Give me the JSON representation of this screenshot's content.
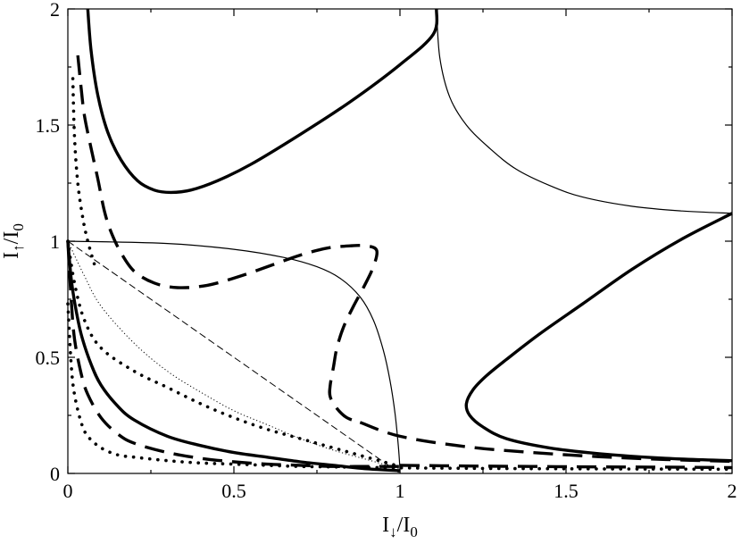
{
  "chart_data": {
    "type": "line",
    "title": "",
    "xlabel": {
      "main": "I",
      "sub1": "↓",
      "sep": "/I",
      "sub2": "0"
    },
    "ylabel": {
      "main": "I",
      "sub1": "↑",
      "sep": "/I",
      "sub2": "0"
    },
    "xlim": [
      0,
      2
    ],
    "ylim": [
      0,
      2
    ],
    "grid": false,
    "legend": "none",
    "x_ticks": [
      {
        "value": 0,
        "label": "0"
      },
      {
        "value": 0.5,
        "label": "0.5"
      },
      {
        "value": 1,
        "label": "1"
      },
      {
        "value": 1.5,
        "label": "1.5"
      },
      {
        "value": 2,
        "label": "2"
      }
    ],
    "y_ticks": [
      {
        "value": 0,
        "label": "0"
      },
      {
        "value": 0.5,
        "label": "0.5"
      },
      {
        "value": 1,
        "label": "1"
      },
      {
        "value": 1.5,
        "label": "1.5"
      },
      {
        "value": 2,
        "label": "2"
      }
    ],
    "series": [
      {
        "style": "thick-solid",
        "points": [
          [
            0.06,
            2.0
          ],
          [
            0.07,
            1.82
          ],
          [
            0.09,
            1.63
          ],
          [
            0.12,
            1.47
          ],
          [
            0.16,
            1.35
          ],
          [
            0.21,
            1.26
          ],
          [
            0.26,
            1.22
          ],
          [
            0.31,
            1.21
          ],
          [
            0.37,
            1.22
          ],
          [
            0.45,
            1.26
          ],
          [
            0.55,
            1.33
          ],
          [
            0.7,
            1.46
          ],
          [
            0.85,
            1.6
          ],
          [
            1.0,
            1.76
          ],
          [
            1.1,
            1.89
          ],
          [
            1.11,
            2.0
          ]
        ]
      },
      {
        "style": "thick-solid",
        "points": [
          [
            0.0,
            1.0
          ],
          [
            0.01,
            0.84
          ],
          [
            0.02,
            0.74
          ],
          [
            0.04,
            0.6
          ],
          [
            0.07,
            0.47
          ],
          [
            0.1,
            0.38
          ],
          [
            0.15,
            0.29
          ],
          [
            0.2,
            0.23
          ],
          [
            0.3,
            0.16
          ],
          [
            0.4,
            0.12
          ],
          [
            0.5,
            0.09
          ],
          [
            0.6,
            0.07
          ],
          [
            0.7,
            0.05
          ],
          [
            0.8,
            0.035
          ],
          [
            0.9,
            0.02
          ],
          [
            1.0,
            0.012
          ]
        ]
      },
      {
        "style": "thick-solid",
        "points": [
          [
            2.0,
            1.12
          ],
          [
            1.85,
            1.01
          ],
          [
            1.7,
            0.88
          ],
          [
            1.55,
            0.73
          ],
          [
            1.42,
            0.6
          ],
          [
            1.32,
            0.49
          ],
          [
            1.26,
            0.42
          ],
          [
            1.22,
            0.36
          ],
          [
            1.2,
            0.3
          ],
          [
            1.21,
            0.25
          ],
          [
            1.25,
            0.2
          ],
          [
            1.32,
            0.15
          ],
          [
            1.45,
            0.11
          ],
          [
            1.6,
            0.085
          ],
          [
            1.8,
            0.065
          ],
          [
            2.0,
            0.055
          ]
        ]
      },
      {
        "style": "thin-solid",
        "points": [
          [
            1.11,
            2.0
          ],
          [
            1.12,
            1.79
          ],
          [
            1.15,
            1.62
          ],
          [
            1.2,
            1.5
          ],
          [
            1.27,
            1.4
          ],
          [
            1.35,
            1.31
          ],
          [
            1.45,
            1.24
          ],
          [
            1.55,
            1.19
          ],
          [
            1.7,
            1.15
          ],
          [
            1.85,
            1.13
          ],
          [
            2.0,
            1.12
          ]
        ]
      },
      {
        "style": "thin-solid",
        "points": [
          [
            0.0,
            1.0
          ],
          [
            0.3,
            0.99
          ],
          [
            0.5,
            0.965
          ],
          [
            0.65,
            0.93
          ],
          [
            0.75,
            0.89
          ],
          [
            0.82,
            0.84
          ],
          [
            0.88,
            0.76
          ],
          [
            0.92,
            0.66
          ],
          [
            0.95,
            0.53
          ],
          [
            0.97,
            0.4
          ],
          [
            0.985,
            0.26
          ],
          [
            0.995,
            0.12
          ],
          [
            1.0,
            0.02
          ]
        ]
      },
      {
        "style": "dashed",
        "points": [
          [
            0.03,
            1.8
          ],
          [
            0.04,
            1.66
          ],
          [
            0.05,
            1.54
          ],
          [
            0.07,
            1.4
          ],
          [
            0.09,
            1.27
          ],
          [
            0.11,
            1.13
          ],
          [
            0.13,
            1.04
          ],
          [
            0.16,
            0.95
          ],
          [
            0.2,
            0.87
          ],
          [
            0.26,
            0.82
          ],
          [
            0.33,
            0.8
          ],
          [
            0.42,
            0.81
          ],
          [
            0.52,
            0.85
          ],
          [
            0.62,
            0.9
          ],
          [
            0.7,
            0.94
          ],
          [
            0.78,
            0.97
          ],
          [
            0.85,
            0.98
          ],
          [
            0.9,
            0.98
          ],
          [
            0.93,
            0.96
          ],
          [
            0.92,
            0.89
          ],
          [
            0.89,
            0.8
          ],
          [
            0.86,
            0.72
          ],
          [
            0.83,
            0.63
          ],
          [
            0.81,
            0.54
          ],
          [
            0.8,
            0.46
          ],
          [
            0.79,
            0.38
          ],
          [
            0.79,
            0.33
          ],
          [
            0.81,
            0.28
          ],
          [
            0.84,
            0.24
          ],
          [
            0.88,
            0.22
          ]
        ]
      },
      {
        "style": "dashed",
        "points": [
          [
            0.0,
            1.0
          ],
          [
            0.01,
            0.75
          ],
          [
            0.02,
            0.58
          ],
          [
            0.04,
            0.43
          ],
          [
            0.06,
            0.34
          ],
          [
            0.1,
            0.24
          ],
          [
            0.15,
            0.17
          ],
          [
            0.2,
            0.13
          ],
          [
            0.3,
            0.09
          ],
          [
            0.4,
            0.065
          ],
          [
            0.5,
            0.05
          ],
          [
            0.6,
            0.04
          ],
          [
            0.7,
            0.035
          ],
          [
            0.8,
            0.03
          ],
          [
            0.9,
            0.03
          ],
          [
            1.0,
            0.03
          ]
        ]
      },
      {
        "style": "dashed",
        "points": [
          [
            0.88,
            0.22
          ],
          [
            1.0,
            0.16
          ],
          [
            1.2,
            0.115
          ],
          [
            1.4,
            0.09
          ],
          [
            1.6,
            0.072
          ],
          [
            1.8,
            0.06
          ],
          [
            2.0,
            0.052
          ]
        ]
      },
      {
        "style": "dashed",
        "points": [
          [
            1.0,
            0.035
          ],
          [
            1.2,
            0.032
          ],
          [
            1.4,
            0.03
          ],
          [
            1.6,
            0.028
          ],
          [
            1.8,
            0.027
          ],
          [
            2.0,
            0.025
          ]
        ]
      },
      {
        "style": "thin-dashed",
        "points": [
          [
            0.0,
            1.0
          ],
          [
            0.5,
            0.5
          ],
          [
            1.0,
            0.0
          ]
        ]
      },
      {
        "style": "dotted",
        "points": [
          [
            0.015,
            1.7
          ],
          [
            0.02,
            1.45
          ],
          [
            0.03,
            1.25
          ],
          [
            0.045,
            1.1
          ],
          [
            0.06,
            1.0
          ],
          [
            0.08,
            0.9
          ]
        ]
      },
      {
        "style": "dotted",
        "points": [
          [
            0.0,
            1.0
          ],
          [
            0.02,
            0.82
          ],
          [
            0.05,
            0.66
          ],
          [
            0.1,
            0.54
          ],
          [
            0.2,
            0.44
          ],
          [
            0.3,
            0.37
          ],
          [
            0.4,
            0.3
          ],
          [
            0.5,
            0.24
          ],
          [
            0.6,
            0.19
          ],
          [
            0.7,
            0.15
          ],
          [
            0.8,
            0.11
          ],
          [
            0.9,
            0.07
          ],
          [
            1.0,
            0.03
          ]
        ]
      },
      {
        "style": "dotted",
        "points": [
          [
            0.0,
            0.73
          ],
          [
            0.01,
            0.47
          ],
          [
            0.02,
            0.34
          ],
          [
            0.04,
            0.22
          ],
          [
            0.06,
            0.16
          ],
          [
            0.1,
            0.11
          ],
          [
            0.15,
            0.08
          ],
          [
            0.2,
            0.07
          ],
          [
            0.3,
            0.055
          ],
          [
            0.4,
            0.045
          ],
          [
            0.5,
            0.04
          ],
          [
            0.6,
            0.035
          ],
          [
            0.7,
            0.03
          ],
          [
            0.8,
            0.028
          ],
          [
            1.0,
            0.024
          ],
          [
            1.2,
            0.022
          ],
          [
            1.5,
            0.02
          ],
          [
            2.0,
            0.018
          ]
        ]
      },
      {
        "style": "thin-dotted",
        "points": [
          [
            0.0,
            1.0
          ],
          [
            0.05,
            0.85
          ],
          [
            0.1,
            0.72
          ],
          [
            0.2,
            0.56
          ],
          [
            0.3,
            0.44
          ],
          [
            0.4,
            0.35
          ],
          [
            0.5,
            0.27
          ],
          [
            0.6,
            0.21
          ],
          [
            0.7,
            0.15
          ],
          [
            0.8,
            0.1
          ],
          [
            0.9,
            0.06
          ],
          [
            1.0,
            0.02
          ]
        ]
      }
    ],
    "annotations": [
      {
        "type": "marker-line",
        "x": 1.0,
        "y_range": [
          0.0,
          0.02
        ]
      }
    ]
  }
}
